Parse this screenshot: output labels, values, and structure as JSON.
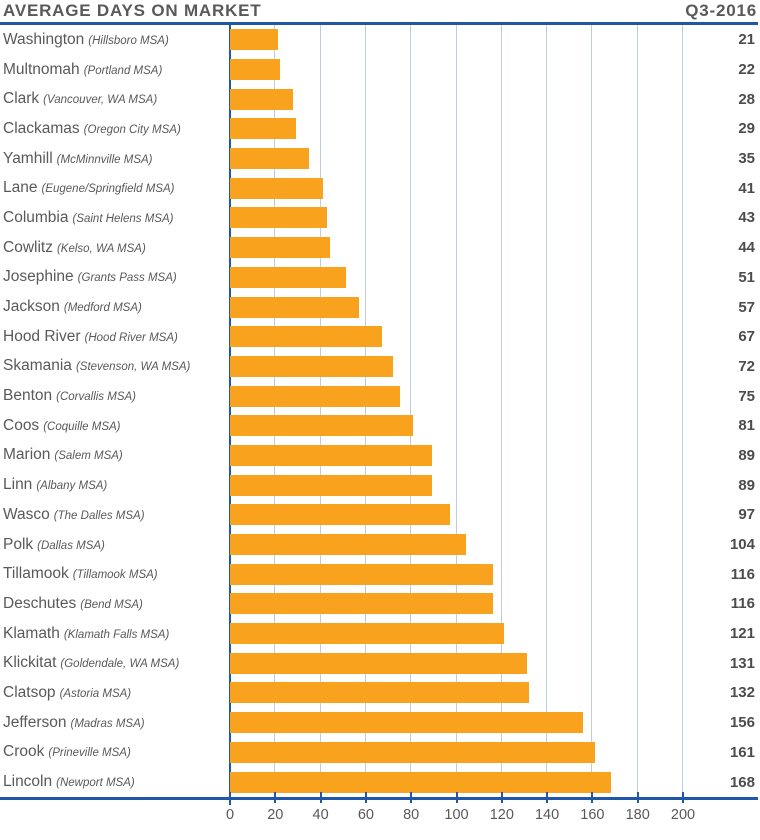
{
  "header": {
    "title": "AVERAGE DAYS ON MARKET",
    "period": "Q3-2016"
  },
  "chart_data": {
    "type": "bar",
    "orientation": "horizontal",
    "title": "AVERAGE DAYS ON MARKET",
    "subtitle": "Q3-2016",
    "categories": [
      "Washington",
      "Multnomah",
      "Clark",
      "Clackamas",
      "Yamhill",
      "Lane",
      "Columbia",
      "Cowlitz",
      "Josephine",
      "Jackson",
      "Hood River",
      "Skamania",
      "Benton",
      "Coos",
      "Marion",
      "Linn",
      "Wasco",
      "Polk",
      "Tillamook",
      "Deschutes",
      "Klamath",
      "Klickitat",
      "Clatsop",
      "Jefferson",
      "Crook",
      "Lincoln"
    ],
    "category_sublabels": [
      "(Hillsboro MSA)",
      "(Portland MSA)",
      "(Vancouver, WA MSA)",
      "(Oregon City MSA)",
      "(McMinnville MSA)",
      "(Eugene/Springfield MSA)",
      "(Saint Helens MSA)",
      "(Kelso, WA MSA)",
      "(Grants Pass MSA)",
      "(Medford MSA)",
      "(Hood River MSA)",
      "(Stevenson, WA MSA)",
      "(Corvallis MSA)",
      "(Coquille MSA)",
      "(Salem MSA)",
      "(Albany MSA)",
      "(The Dalles MSA)",
      "(Dallas MSA)",
      "(Tillamook MSA)",
      "(Bend MSA)",
      "(Klamath Falls MSA)",
      "(Goldendale, WA MSA)",
      "(Astoria MSA)",
      "(Madras MSA)",
      "(Prineville MSA)",
      "(Newport MSA)"
    ],
    "values": [
      21,
      22,
      28,
      29,
      35,
      41,
      43,
      44,
      51,
      57,
      67,
      72,
      75,
      81,
      89,
      89,
      97,
      104,
      116,
      116,
      121,
      131,
      132,
      156,
      161,
      168
    ],
    "xlabel": "",
    "ylabel": "",
    "xlim": [
      0,
      200
    ],
    "xticks": [
      0,
      20,
      40,
      60,
      80,
      100,
      120,
      140,
      160,
      180,
      200
    ],
    "grid": true,
    "legend": false,
    "value_labels_position": "right",
    "colors": {
      "bar": "#F9A21E",
      "axis": "#2157A8",
      "gridline": "#BCCEE2",
      "text": "#58595B",
      "value_text": "#4C4C4E"
    }
  }
}
